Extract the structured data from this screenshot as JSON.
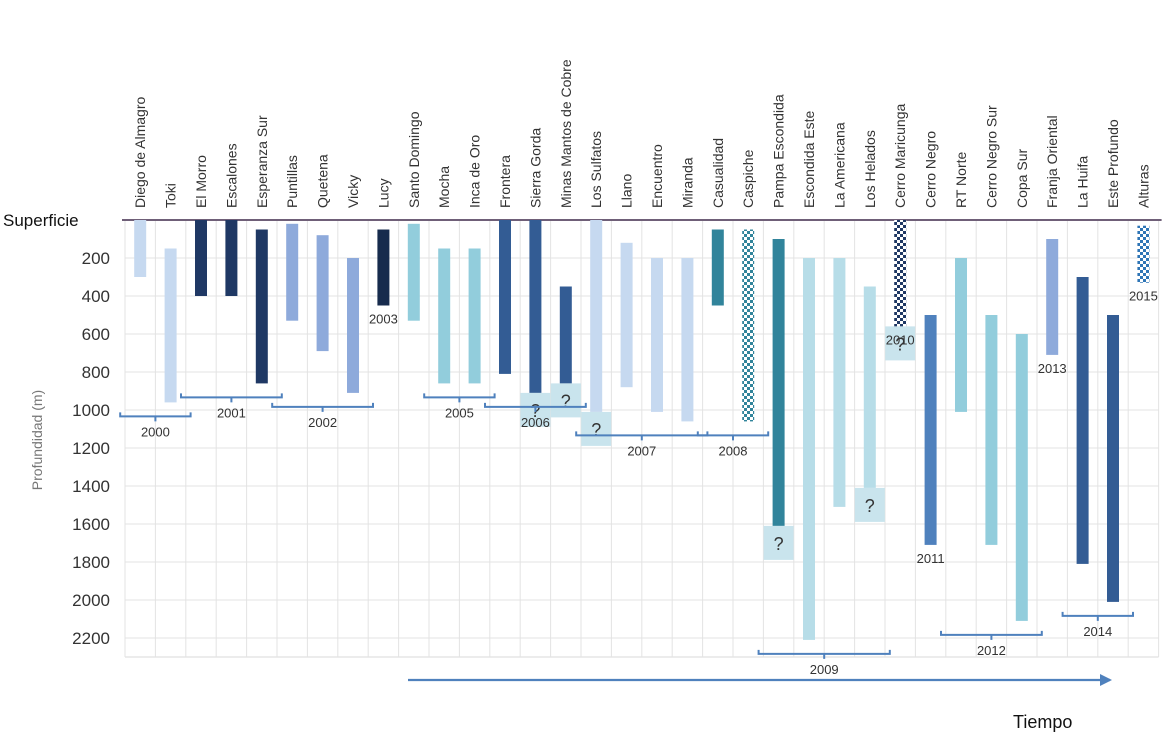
{
  "chart_data": {
    "type": "bar",
    "title": "",
    "surface_label": "Superficie",
    "xlabel": "Tiempo",
    "ylabel": "Profundidad (m)",
    "ylim": [
      0,
      2300
    ],
    "y_ticks": [
      200,
      400,
      600,
      800,
      1000,
      1200,
      1400,
      1600,
      1800,
      2000,
      2200
    ],
    "grid": true,
    "deposits": [
      {
        "name": "Diego de Almagro",
        "top": 0,
        "bottom": 300,
        "color": "#c6d9f0",
        "pattern": "solid",
        "unknown_bottom": false
      },
      {
        "name": "Toki",
        "top": 150,
        "bottom": 960,
        "color": "#c6d9f0",
        "pattern": "solid",
        "unknown_bottom": false
      },
      {
        "name": "El Morro",
        "top": 0,
        "bottom": 400,
        "color": "#1f3864",
        "pattern": "solid",
        "unknown_bottom": false
      },
      {
        "name": "Escalones",
        "top": 0,
        "bottom": 400,
        "color": "#1f3864",
        "pattern": "solid",
        "unknown_bottom": false
      },
      {
        "name": "Esperanza Sur",
        "top": 50,
        "bottom": 860,
        "color": "#1f3864",
        "pattern": "solid",
        "unknown_bottom": false
      },
      {
        "name": "Puntillas",
        "top": 20,
        "bottom": 530,
        "color": "#8eaadb",
        "pattern": "solid",
        "unknown_bottom": false
      },
      {
        "name": "Quetena",
        "top": 80,
        "bottom": 690,
        "color": "#8eaadb",
        "pattern": "solid",
        "unknown_bottom": false
      },
      {
        "name": "Vicky",
        "top": 200,
        "bottom": 910,
        "color": "#8eaadb",
        "pattern": "solid",
        "unknown_bottom": false
      },
      {
        "name": "Lucy",
        "top": 50,
        "bottom": 450,
        "color": "#172b4d",
        "pattern": "solid",
        "unknown_bottom": false
      },
      {
        "name": "Santo Domingo",
        "top": 20,
        "bottom": 530,
        "color": "#92cddc",
        "pattern": "solid",
        "unknown_bottom": false
      },
      {
        "name": "Mocha",
        "top": 150,
        "bottom": 860,
        "color": "#92cddc",
        "pattern": "solid",
        "unknown_bottom": false
      },
      {
        "name": "Inca de Oro",
        "top": 150,
        "bottom": 860,
        "color": "#92cddc",
        "pattern": "solid",
        "unknown_bottom": false
      },
      {
        "name": "Frontera",
        "top": 0,
        "bottom": 810,
        "color": "#335c94",
        "pattern": "solid",
        "unknown_bottom": false
      },
      {
        "name": "Sierra Gorda",
        "top": 0,
        "bottom": 910,
        "color": "#335c94",
        "pattern": "solid",
        "unknown_bottom": true
      },
      {
        "name": "Minas Mantos de Cobre",
        "top": 350,
        "bottom": 860,
        "color": "#335c94",
        "pattern": "solid",
        "unknown_bottom": true
      },
      {
        "name": "Los Sulfatos",
        "top": 0,
        "bottom": 1010,
        "color": "#c6d9f0",
        "pattern": "solid",
        "unknown_bottom": true
      },
      {
        "name": "Llano",
        "top": 120,
        "bottom": 880,
        "color": "#c6d9f0",
        "pattern": "solid",
        "unknown_bottom": false
      },
      {
        "name": "Encuentro",
        "top": 200,
        "bottom": 1010,
        "color": "#c6d9f0",
        "pattern": "solid",
        "unknown_bottom": false
      },
      {
        "name": "Miranda",
        "top": 200,
        "bottom": 1060,
        "color": "#c6d9f0",
        "pattern": "solid",
        "unknown_bottom": false
      },
      {
        "name": "Casualidad",
        "top": 50,
        "bottom": 450,
        "color": "#31849b",
        "pattern": "solid",
        "unknown_bottom": false
      },
      {
        "name": "Caspiche",
        "top": 50,
        "bottom": 1060,
        "color": "#31849b",
        "pattern": "checker",
        "unknown_bottom": false
      },
      {
        "name": "Pampa Escondida",
        "top": 100,
        "bottom": 1610,
        "color": "#31849b",
        "pattern": "solid",
        "unknown_bottom": true
      },
      {
        "name": "Escondida Este",
        "top": 200,
        "bottom": 2210,
        "color": "#b7dde8",
        "pattern": "solid",
        "unknown_bottom": false
      },
      {
        "name": "La Americana",
        "top": 200,
        "bottom": 1510,
        "color": "#b7dde8",
        "pattern": "solid",
        "unknown_bottom": false
      },
      {
        "name": "Los Helados",
        "top": 350,
        "bottom": 1410,
        "color": "#b7dde8",
        "pattern": "solid",
        "unknown_bottom": true
      },
      {
        "name": "Cerro Maricunga",
        "top": 0,
        "bottom": 560,
        "color": "#1f3864",
        "pattern": "checker",
        "unknown_bottom": true
      },
      {
        "name": "Cerro Negro",
        "top": 500,
        "bottom": 1710,
        "color": "#4f81bd",
        "pattern": "solid",
        "unknown_bottom": false
      },
      {
        "name": "RT Norte",
        "top": 200,
        "bottom": 1010,
        "color": "#92cddc",
        "pattern": "solid",
        "unknown_bottom": false
      },
      {
        "name": "Cerro Negro Sur",
        "top": 500,
        "bottom": 1710,
        "color": "#92cddc",
        "pattern": "solid",
        "unknown_bottom": false
      },
      {
        "name": "Copa Sur",
        "top": 600,
        "bottom": 2110,
        "color": "#92cddc",
        "pattern": "solid",
        "unknown_bottom": false
      },
      {
        "name": "Franja Oriental",
        "top": 100,
        "bottom": 710,
        "color": "#8eaadb",
        "pattern": "solid",
        "unknown_bottom": false
      },
      {
        "name": "La Huifa",
        "top": 300,
        "bottom": 1810,
        "color": "#335c94",
        "pattern": "solid",
        "unknown_bottom": false
      },
      {
        "name": "Este Profundo",
        "top": 500,
        "bottom": 2010,
        "color": "#335c94",
        "pattern": "solid",
        "unknown_bottom": false
      },
      {
        "name": "Alturas",
        "top": 30,
        "bottom": 330,
        "color": "#2e75b6",
        "pattern": "checker",
        "unknown_bottom": false
      }
    ],
    "years": [
      {
        "label": "2000",
        "from": 0,
        "to": 1,
        "style": "bracket"
      },
      {
        "label": "2001",
        "from": 2,
        "to": 4,
        "style": "bracket"
      },
      {
        "label": "2002",
        "from": 5,
        "to": 7,
        "style": "bracket"
      },
      {
        "label": "2003",
        "from": 8,
        "to": 8,
        "style": "text"
      },
      {
        "label": "2005",
        "from": 10,
        "to": 11,
        "style": "bracket"
      },
      {
        "label": "2006",
        "from": 12,
        "to": 14,
        "style": "bracket"
      },
      {
        "label": "2007",
        "from": 15,
        "to": 18,
        "style": "bracket"
      },
      {
        "label": "2008",
        "from": 19,
        "to": 20,
        "style": "bracket"
      },
      {
        "label": "2009",
        "from": 21,
        "to": 24,
        "style": "bracket"
      },
      {
        "label": "2010",
        "from": 25,
        "to": 25,
        "style": "text"
      },
      {
        "label": "2011",
        "from": 26,
        "to": 26,
        "style": "text"
      },
      {
        "label": "2012",
        "from": 27,
        "to": 29,
        "style": "bracket"
      },
      {
        "label": "2013",
        "from": 30,
        "to": 30,
        "style": "text"
      },
      {
        "label": "2014",
        "from": 31,
        "to": 32,
        "style": "bracket"
      },
      {
        "label": "2015",
        "from": 33,
        "to": 33,
        "style": "text"
      }
    ],
    "unknown_marker": "?"
  }
}
